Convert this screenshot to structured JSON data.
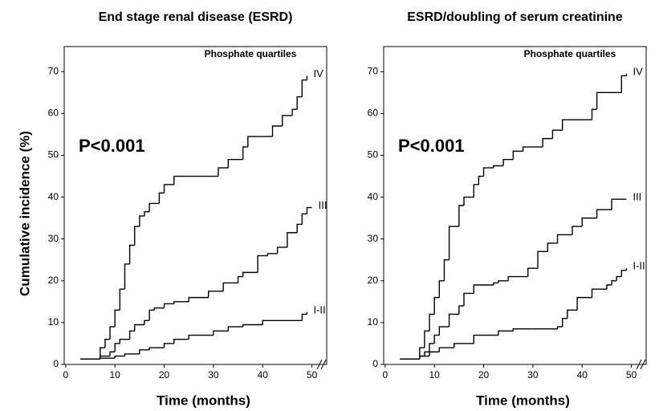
{
  "chart_data": [
    {
      "type": "step",
      "title": "End stage renal disease (ESRD)",
      "xlabel": "Time (months)",
      "ylabel": "Cumulative incidence (%)",
      "legend_title": "Phosphate quartiles",
      "annotation": "P<0.001",
      "xlim": [
        -0.3,
        53
      ],
      "ylim": [
        0,
        76
      ],
      "xticks": [
        0,
        10,
        20,
        30,
        40,
        50
      ],
      "yticks": [
        0,
        10,
        20,
        30,
        40,
        50,
        60,
        70
      ],
      "series": [
        {
          "name": "IV",
          "color": "#000000",
          "x": [
            3,
            7,
            8,
            9,
            10,
            11,
            12,
            13,
            14,
            15,
            16,
            17,
            19,
            20,
            22,
            30,
            31,
            33,
            36,
            37,
            42,
            44,
            46,
            47,
            48,
            49
          ],
          "values": [
            1.3,
            4,
            6,
            9,
            13,
            18,
            24,
            28.5,
            33,
            35.5,
            36.5,
            38.5,
            41,
            43,
            45,
            45,
            47,
            49,
            52,
            54.5,
            57,
            59.5,
            61,
            64,
            68,
            69
          ]
        },
        {
          "name": "III",
          "color": "#000000",
          "x": [
            3,
            7,
            9,
            10,
            11,
            13,
            14,
            16,
            17,
            18,
            20,
            22,
            25,
            29,
            32,
            35,
            36,
            39,
            41,
            43,
            45,
            47,
            48,
            49,
            50
          ],
          "values": [
            1.3,
            2,
            3,
            5,
            6,
            8,
            9.5,
            10.5,
            13,
            13.5,
            14.5,
            15,
            16,
            17.5,
            19.5,
            21,
            22,
            26,
            26.5,
            28,
            31.5,
            33.5,
            36,
            37.5,
            37.5
          ]
        },
        {
          "name": "I-II",
          "color": "#000000",
          "x": [
            3,
            7,
            10,
            12,
            15,
            17,
            20,
            22,
            25,
            30,
            33,
            36,
            40,
            48,
            49
          ],
          "values": [
            1.3,
            1.5,
            2,
            2.5,
            3.5,
            4,
            5,
            6,
            7,
            8,
            9,
            9.5,
            10.5,
            12,
            12.5
          ]
        }
      ]
    },
    {
      "type": "step",
      "title": "ESRD/doubling of serum creatinine",
      "xlabel": "Time (months)",
      "legend_title": "Phosphate quartiles",
      "annotation": "P<0.001",
      "xlim": [
        -0.3,
        53
      ],
      "ylim": [
        0,
        76
      ],
      "xticks": [
        0,
        10,
        20,
        30,
        40,
        50
      ],
      "yticks": [
        0,
        10,
        20,
        30,
        40,
        50,
        60,
        70
      ],
      "series": [
        {
          "name": "IV",
          "color": "#000000",
          "x": [
            3,
            7,
            8,
            9,
            10,
            11,
            12,
            13,
            15,
            16,
            18,
            19,
            20,
            22,
            24,
            26,
            28,
            32,
            34,
            36,
            40,
            42,
            43,
            47,
            48,
            49
          ],
          "values": [
            1.3,
            4,
            8,
            12,
            16,
            20,
            25,
            33,
            38,
            40,
            43,
            45,
            47,
            47.5,
            49,
            51,
            52,
            54,
            56,
            58.5,
            58.5,
            61,
            65,
            65,
            69,
            69.5
          ]
        },
        {
          "name": "III",
          "color": "#000000",
          "x": [
            3,
            7,
            8,
            9,
            10,
            11,
            13,
            15,
            16,
            18,
            22,
            23,
            25,
            29,
            31,
            33,
            35,
            38,
            40,
            43,
            46,
            49
          ],
          "values": [
            1.3,
            2,
            3,
            5,
            7,
            9,
            12,
            14,
            17,
            19,
            19.5,
            20,
            21,
            23,
            27,
            29,
            31,
            33,
            35,
            37,
            39.5,
            39.5
          ]
        },
        {
          "name": "I-II",
          "color": "#000000",
          "x": [
            3,
            7,
            9,
            11,
            14,
            18,
            23,
            26,
            30,
            35,
            36,
            37,
            39,
            42,
            45,
            46,
            47,
            48,
            49
          ],
          "values": [
            1.3,
            2,
            3,
            4,
            5,
            7,
            8,
            8.5,
            8.5,
            9,
            11,
            13,
            16,
            18,
            19,
            20,
            21,
            22.5,
            23
          ]
        }
      ]
    }
  ]
}
